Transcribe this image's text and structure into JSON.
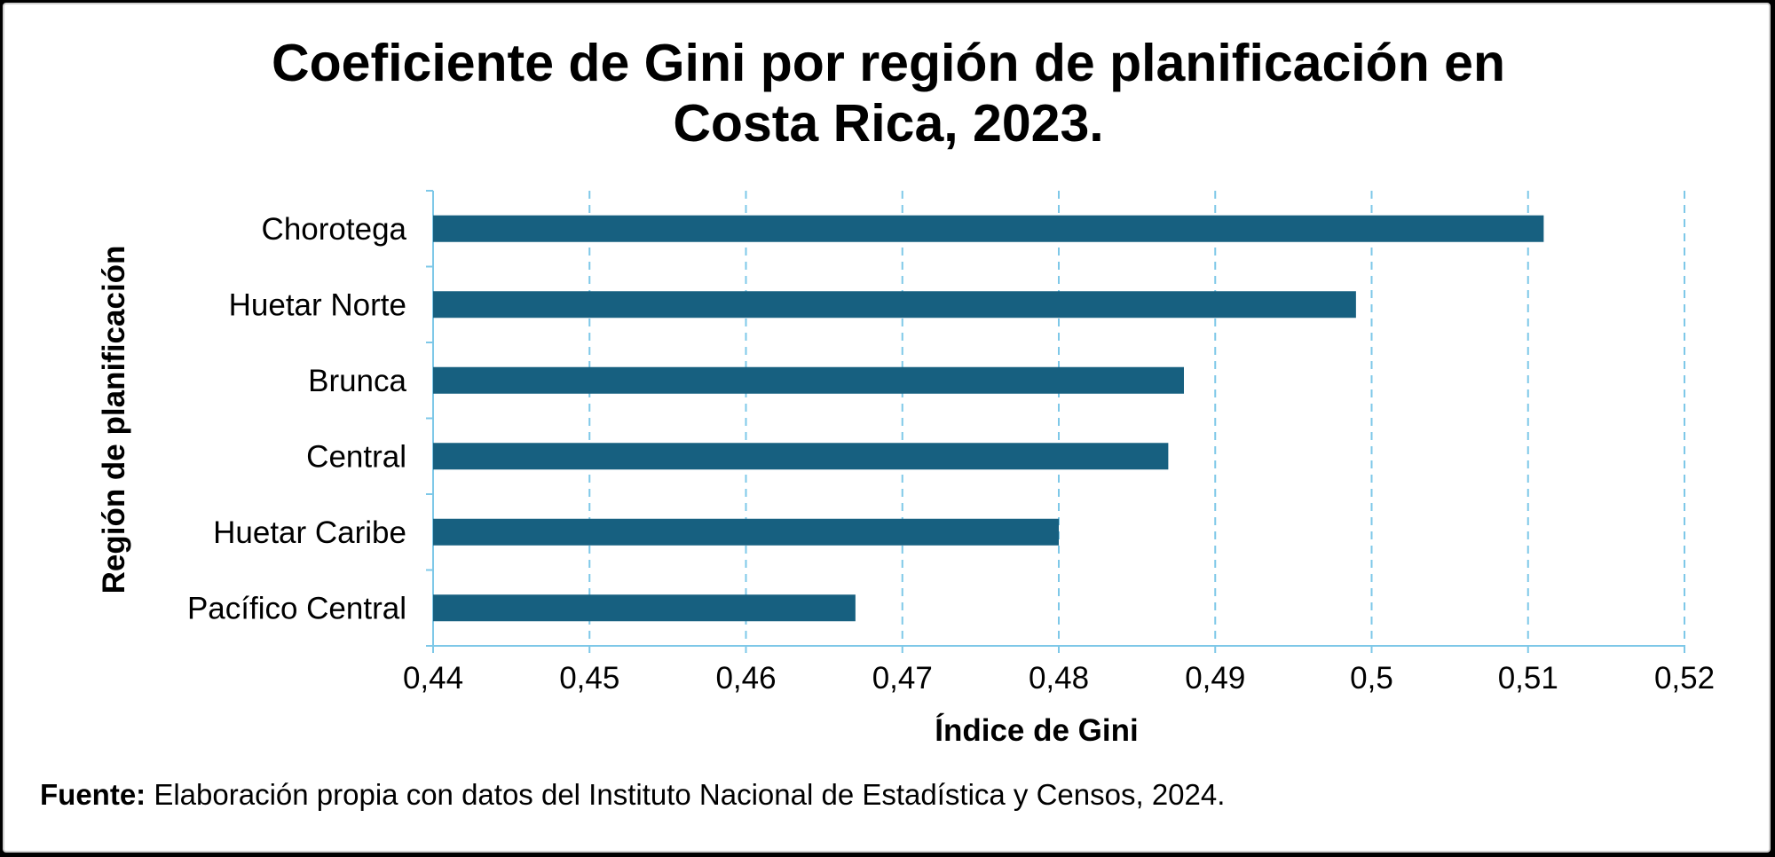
{
  "chart_data": {
    "type": "bar",
    "orientation": "horizontal",
    "title_lines": [
      "Coeficiente de Gini por región de planificación en",
      "Costa Rica, 2023."
    ],
    "xlabel": "Índice de Gini",
    "ylabel": "Región de planificación",
    "categories": [
      "Chorotega",
      "Huetar Norte",
      "Brunca",
      "Central",
      "Huetar Caribe",
      "Pacífico Central"
    ],
    "values": [
      0.511,
      0.499,
      0.488,
      0.487,
      0.48,
      0.467
    ],
    "xlim": [
      0.44,
      0.52
    ],
    "xticks": [
      0.44,
      0.45,
      0.46,
      0.47,
      0.48,
      0.49,
      0.5,
      0.51,
      0.52
    ],
    "xtick_labels": [
      "0,44",
      "0,45",
      "0,46",
      "0,47",
      "0,48",
      "0,49",
      "0,5",
      "0,51",
      "0,52"
    ],
    "grid": "vertical dashed",
    "bar_color": "#176080",
    "grid_color": "#7ec8e8"
  },
  "source": {
    "label": "Fuente:",
    "text": " Elaboración propia con datos del Instituto Nacional de Estadística y Censos, 2024."
  }
}
